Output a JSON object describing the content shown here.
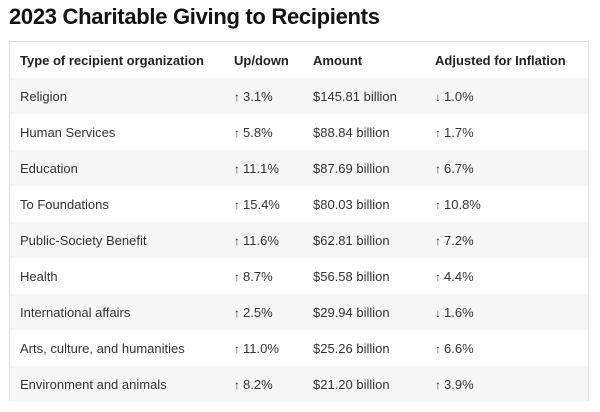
{
  "title": "2023 Charitable Giving to Recipients",
  "headers": [
    "Type of recipient organization",
    "Up/down",
    "Amount",
    "Adjusted for Inflation"
  ],
  "rows": [
    {
      "type": "Religion",
      "dir": "↑",
      "change": "3.1%",
      "amount": "$145.81 billion",
      "adj_dir": "↓",
      "adj": "1.0%"
    },
    {
      "type": "Human Services",
      "dir": "↑",
      "change": "5.8%",
      "amount": "$88.84 billion",
      "adj_dir": "↑",
      "adj": "1.7%"
    },
    {
      "type": "Education",
      "dir": "↑",
      "change": "11.1%",
      "amount": "$87.69 billion",
      "adj_dir": "↑",
      "adj": "6.7%"
    },
    {
      "type": "To Foundations",
      "dir": "↑",
      "change": "15.4%",
      "amount": "$80.03 billion",
      "adj_dir": "↑",
      "adj": "10.8%"
    },
    {
      "type": "Public-Society Benefit",
      "dir": "↑",
      "change": "11.6%",
      "amount": "$62.81 billion",
      "adj_dir": "↑",
      "adj": "7.2%"
    },
    {
      "type": "Health",
      "dir": "↑",
      "change": "8.7%",
      "amount": "$56.58 billion",
      "adj_dir": "↑",
      "adj": "4.4%"
    },
    {
      "type": "International affairs",
      "dir": "↑",
      "change": "2.5%",
      "amount": "$29.94 billion",
      "adj_dir": "↓",
      "adj": "1.6%"
    },
    {
      "type": "Arts, culture, and humanities",
      "dir": "↑",
      "change": "11.0%",
      "amount": "$25.26 billion",
      "adj_dir": "↑",
      "adj": "6.6%"
    },
    {
      "type": "Environment and animals",
      "dir": "↑",
      "change": "8.2%",
      "amount": "$21.20 billion",
      "adj_dir": "↑",
      "adj": "3.9%"
    }
  ]
}
